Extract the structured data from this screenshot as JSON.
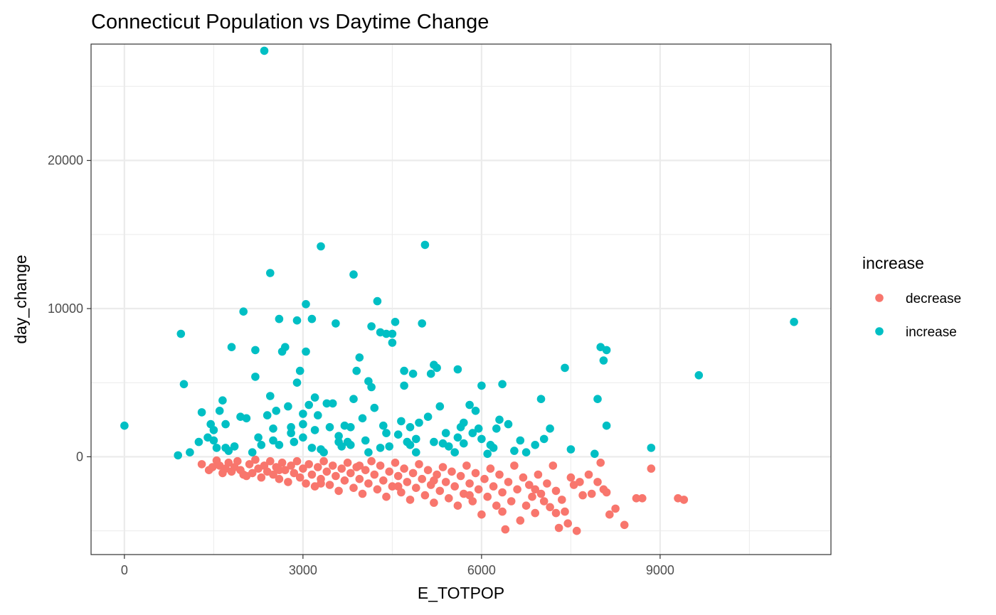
{
  "chart_data": {
    "type": "scatter",
    "title": "Connecticut Population vs Daytime Change",
    "xlabel": "E_TOTPOP",
    "ylabel": "day_change",
    "xlim": [
      -560,
      11870
    ],
    "ylim": [
      -6600,
      27850
    ],
    "x_ticks": [
      0,
      3000,
      6000,
      9000
    ],
    "x_tick_labels": [
      "0",
      "3000",
      "6000",
      "9000"
    ],
    "x_minor": [
      1500,
      4500,
      7500,
      10500
    ],
    "y_ticks": [
      0,
      10000,
      20000
    ],
    "y_tick_labels": [
      "0",
      "10000",
      "20000"
    ],
    "y_minor": [
      -5000,
      5000,
      15000,
      25000
    ],
    "grid": true,
    "legend": {
      "title": "increase",
      "position": "right",
      "entries": [
        {
          "label": "decrease",
          "color": "#F8766D"
        },
        {
          "label": "increase",
          "color": "#00BFC4"
        }
      ]
    },
    "series": [
      {
        "name": "decrease",
        "color": "#F8766D",
        "points": [
          [
            1300,
            -500
          ],
          [
            1420,
            -900
          ],
          [
            1480,
            -700
          ],
          [
            1550,
            -250
          ],
          [
            1600,
            -600
          ],
          [
            1650,
            -1100
          ],
          [
            1700,
            -800
          ],
          [
            1750,
            -400
          ],
          [
            1800,
            -1000
          ],
          [
            1850,
            -700
          ],
          [
            1900,
            -300
          ],
          [
            1950,
            -900
          ],
          [
            2050,
            -1300
          ],
          [
            2100,
            -500
          ],
          [
            2150,
            -1100
          ],
          [
            2200,
            -200
          ],
          [
            2250,
            -800
          ],
          [
            2300,
            -1400
          ],
          [
            2350,
            -600
          ],
          [
            2400,
            -1000
          ],
          [
            2450,
            -300
          ],
          [
            2500,
            -1200
          ],
          [
            2550,
            -700
          ],
          [
            2600,
            -1500
          ],
          [
            2650,
            -400
          ],
          [
            2700,
            -900
          ],
          [
            2750,
            -1700
          ],
          [
            2800,
            -600
          ],
          [
            2850,
            -1100
          ],
          [
            2900,
            -300
          ],
          [
            2950,
            -1400
          ],
          [
            3000,
            -800
          ],
          [
            3050,
            -1800
          ],
          [
            3100,
            -500
          ],
          [
            3150,
            -1200
          ],
          [
            3200,
            -2000
          ],
          [
            3250,
            -700
          ],
          [
            3300,
            -1500
          ],
          [
            3350,
            -300
          ],
          [
            3400,
            -1000
          ],
          [
            3450,
            -1900
          ],
          [
            3500,
            -600
          ],
          [
            3550,
            -1300
          ],
          [
            3600,
            -2300
          ],
          [
            3650,
            -800
          ],
          [
            3700,
            -1600
          ],
          [
            3750,
            -400
          ],
          [
            3800,
            -1100
          ],
          [
            3850,
            -2100
          ],
          [
            3900,
            -700
          ],
          [
            3950,
            -1500
          ],
          [
            4000,
            -2500
          ],
          [
            4050,
            -900
          ],
          [
            4100,
            -1800
          ],
          [
            4150,
            -300
          ],
          [
            4200,
            -1200
          ],
          [
            4250,
            -2200
          ],
          [
            4300,
            -600
          ],
          [
            4350,
            -1600
          ],
          [
            4400,
            -2700
          ],
          [
            4450,
            -1000
          ],
          [
            4500,
            -2000
          ],
          [
            4550,
            -400
          ],
          [
            4600,
            -1300
          ],
          [
            4650,
            -2400
          ],
          [
            4700,
            -800
          ],
          [
            4750,
            -1700
          ],
          [
            4800,
            -2900
          ],
          [
            4850,
            -1100
          ],
          [
            4900,
            -2100
          ],
          [
            4950,
            -500
          ],
          [
            5000,
            -1500
          ],
          [
            5050,
            -2600
          ],
          [
            5100,
            -900
          ],
          [
            5150,
            -1900
          ],
          [
            5200,
            -3100
          ],
          [
            5250,
            -1200
          ],
          [
            5300,
            -2300
          ],
          [
            5350,
            -700
          ],
          [
            5400,
            -1700
          ],
          [
            5450,
            -2800
          ],
          [
            5500,
            -1000
          ],
          [
            5550,
            -2000
          ],
          [
            5600,
            -3300
          ],
          [
            5650,
            -1300
          ],
          [
            5700,
            -2500
          ],
          [
            5750,
            -600
          ],
          [
            5800,
            -1800
          ],
          [
            5850,
            -3000
          ],
          [
            5900,
            -1100
          ],
          [
            5950,
            -2200
          ],
          [
            6000,
            -3900
          ],
          [
            6050,
            -1500
          ],
          [
            6100,
            -2700
          ],
          [
            6150,
            -800
          ],
          [
            6200,
            -2000
          ],
          [
            6250,
            -3300
          ],
          [
            6300,
            -1200
          ],
          [
            6350,
            -2400
          ],
          [
            6400,
            -4900
          ],
          [
            6450,
            -1700
          ],
          [
            6500,
            -3000
          ],
          [
            6550,
            -600
          ],
          [
            6600,
            -2200
          ],
          [
            6650,
            -4300
          ],
          [
            6700,
            -1400
          ],
          [
            6750,
            -3300
          ],
          [
            6800,
            -1900
          ],
          [
            6850,
            -2700
          ],
          [
            6900,
            -3800
          ],
          [
            6950,
            -1200
          ],
          [
            7000,
            -2500
          ],
          [
            7050,
            -3000
          ],
          [
            7100,
            -1800
          ],
          [
            7150,
            -3400
          ],
          [
            7200,
            -600
          ],
          [
            7250,
            -2300
          ],
          [
            7300,
            -4800
          ],
          [
            7350,
            -2900
          ],
          [
            7400,
            -3700
          ],
          [
            7500,
            -1400
          ],
          [
            7550,
            -1900
          ],
          [
            7600,
            -5000
          ],
          [
            7650,
            -1700
          ],
          [
            7700,
            -2600
          ],
          [
            7800,
            -1200
          ],
          [
            7850,
            -2500
          ],
          [
            7950,
            -1700
          ],
          [
            8000,
            -400
          ],
          [
            8050,
            -2200
          ],
          [
            8100,
            -2400
          ],
          [
            8150,
            -3900
          ],
          [
            8250,
            -3500
          ],
          [
            8400,
            -4600
          ],
          [
            8600,
            -2800
          ],
          [
            8700,
            -2800
          ],
          [
            8850,
            -800
          ],
          [
            9300,
            -2800
          ],
          [
            9400,
            -2900
          ],
          [
            7450,
            -4500
          ],
          [
            2000,
            -1200
          ],
          [
            2600,
            -900
          ],
          [
            3300,
            -1800
          ],
          [
            3950,
            -600
          ],
          [
            4600,
            -2000
          ],
          [
            5200,
            -1600
          ],
          [
            5800,
            -2600
          ],
          [
            6350,
            -3700
          ],
          [
            6900,
            -2200
          ],
          [
            7250,
            -3800
          ]
        ]
      },
      {
        "name": "increase",
        "color": "#00BFC4",
        "points": [
          [
            0,
            2100
          ],
          [
            900,
            100
          ],
          [
            950,
            8300
          ],
          [
            1000,
            4900
          ],
          [
            1100,
            300
          ],
          [
            1250,
            1000
          ],
          [
            1300,
            3000
          ],
          [
            1400,
            1300
          ],
          [
            1450,
            2200
          ],
          [
            1500,
            1800
          ],
          [
            1550,
            600
          ],
          [
            1600,
            3100
          ],
          [
            1650,
            3800
          ],
          [
            1700,
            2200
          ],
          [
            1750,
            400
          ],
          [
            1800,
            7400
          ],
          [
            1850,
            700
          ],
          [
            1950,
            2700
          ],
          [
            2000,
            9800
          ],
          [
            2050,
            2600
          ],
          [
            2150,
            300
          ],
          [
            2200,
            7200
          ],
          [
            2200,
            5400
          ],
          [
            2250,
            1300
          ],
          [
            2350,
            27400
          ],
          [
            2400,
            2800
          ],
          [
            2450,
            12400
          ],
          [
            2450,
            4100
          ],
          [
            2500,
            1900
          ],
          [
            2550,
            3100
          ],
          [
            2600,
            9300
          ],
          [
            2600,
            800
          ],
          [
            2650,
            7100
          ],
          [
            2700,
            7400
          ],
          [
            2750,
            3400
          ],
          [
            2800,
            2000
          ],
          [
            2850,
            1000
          ],
          [
            2900,
            9200
          ],
          [
            2900,
            5000
          ],
          [
            2950,
            5800
          ],
          [
            3000,
            2900
          ],
          [
            3000,
            1300
          ],
          [
            3050,
            7100
          ],
          [
            3050,
            10300
          ],
          [
            3100,
            3500
          ],
          [
            3150,
            9300
          ],
          [
            3150,
            600
          ],
          [
            3200,
            4000
          ],
          [
            3250,
            2800
          ],
          [
            3300,
            14200
          ],
          [
            3350,
            300
          ],
          [
            3400,
            3600
          ],
          [
            3450,
            2000
          ],
          [
            3500,
            3600
          ],
          [
            3550,
            9000
          ],
          [
            3600,
            1400
          ],
          [
            3650,
            700
          ],
          [
            3700,
            2100
          ],
          [
            3750,
            1000
          ],
          [
            3800,
            2000
          ],
          [
            3850,
            12300
          ],
          [
            3850,
            3900
          ],
          [
            3900,
            5800
          ],
          [
            3950,
            6700
          ],
          [
            4000,
            2600
          ],
          [
            4050,
            1100
          ],
          [
            4100,
            5100
          ],
          [
            4150,
            8800
          ],
          [
            4150,
            4700
          ],
          [
            4200,
            3300
          ],
          [
            4250,
            10500
          ],
          [
            4300,
            8400
          ],
          [
            4350,
            2100
          ],
          [
            4400,
            8300
          ],
          [
            4450,
            700
          ],
          [
            4500,
            7700
          ],
          [
            4500,
            8300
          ],
          [
            4550,
            9100
          ],
          [
            4600,
            1500
          ],
          [
            4650,
            2400
          ],
          [
            4700,
            4800
          ],
          [
            4700,
            5800
          ],
          [
            4750,
            1000
          ],
          [
            4800,
            2000
          ],
          [
            4850,
            5600
          ],
          [
            4900,
            300
          ],
          [
            4950,
            2300
          ],
          [
            5000,
            9000
          ],
          [
            5050,
            14300
          ],
          [
            5100,
            2700
          ],
          [
            5150,
            5600
          ],
          [
            5200,
            6200
          ],
          [
            5250,
            6000
          ],
          [
            5300,
            3400
          ],
          [
            5350,
            900
          ],
          [
            5400,
            1600
          ],
          [
            5450,
            700
          ],
          [
            5550,
            300
          ],
          [
            5600,
            5900
          ],
          [
            5650,
            2000
          ],
          [
            5700,
            2300
          ],
          [
            5800,
            3500
          ],
          [
            5850,
            1600
          ],
          [
            5900,
            3100
          ],
          [
            5950,
            1900
          ],
          [
            6000,
            4800
          ],
          [
            6100,
            200
          ],
          [
            6150,
            800
          ],
          [
            6250,
            1900
          ],
          [
            6300,
            2500
          ],
          [
            6350,
            4900
          ],
          [
            6450,
            2200
          ],
          [
            6550,
            400
          ],
          [
            6650,
            1100
          ],
          [
            6750,
            300
          ],
          [
            6900,
            800
          ],
          [
            7000,
            3900
          ],
          [
            7050,
            1200
          ],
          [
            7150,
            1900
          ],
          [
            7400,
            6000
          ],
          [
            7500,
            500
          ],
          [
            7900,
            200
          ],
          [
            7950,
            3900
          ],
          [
            8000,
            7400
          ],
          [
            8050,
            6500
          ],
          [
            8100,
            2100
          ],
          [
            8100,
            7200
          ],
          [
            8850,
            600
          ],
          [
            9650,
            5500
          ],
          [
            11250,
            9100
          ],
          [
            1500,
            1100
          ],
          [
            1700,
            600
          ],
          [
            2300,
            800
          ],
          [
            2800,
            1600
          ],
          [
            3300,
            500
          ],
          [
            3600,
            1000
          ],
          [
            4100,
            300
          ],
          [
            4300,
            600
          ],
          [
            4800,
            800
          ],
          [
            5200,
            1000
          ],
          [
            5700,
            900
          ],
          [
            6200,
            600
          ],
          [
            3000,
            2200
          ],
          [
            3800,
            800
          ],
          [
            4900,
            1200
          ],
          [
            2500,
            1100
          ],
          [
            3200,
            1800
          ],
          [
            4400,
            1600
          ],
          [
            5600,
            1300
          ],
          [
            6000,
            1200
          ]
        ]
      }
    ]
  }
}
